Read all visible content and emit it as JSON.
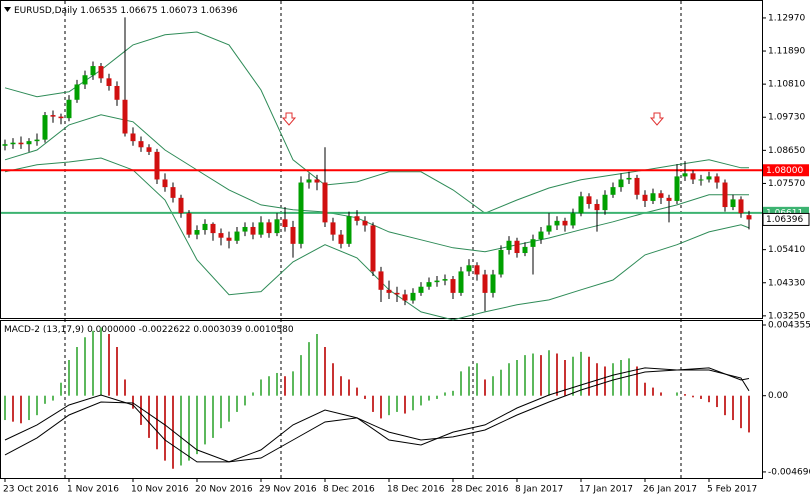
{
  "chart_data": {
    "type": "candlestick",
    "symbol": "EURUSD,Daily",
    "ohlc": [
      [
        1.088,
        1.09,
        1.0865,
        1.0885
      ],
      [
        1.0885,
        1.0905,
        1.087,
        1.089
      ],
      [
        1.089,
        1.091,
        1.087,
        1.0885
      ],
      [
        1.0885,
        1.0905,
        1.086,
        1.0895
      ],
      [
        1.0895,
        1.092,
        1.088,
        1.09
      ],
      [
        1.09,
        1.099,
        1.089,
        1.098
      ],
      [
        1.098,
        1.0995,
        1.0955,
        1.0975
      ],
      [
        1.0975,
        1.0985,
        1.095,
        1.097
      ],
      [
        1.097,
        1.1045,
        1.096,
        1.103
      ],
      [
        1.103,
        1.1095,
        1.102,
        1.108
      ],
      [
        1.108,
        1.1125,
        1.1065,
        1.111
      ],
      [
        1.111,
        1.1155,
        1.1095,
        1.114
      ],
      [
        1.114,
        1.115,
        1.1085,
        1.11
      ],
      [
        1.11,
        1.1115,
        1.106,
        1.1075
      ],
      [
        1.1075,
        1.109,
        1.101,
        1.103
      ],
      [
        1.103,
        1.1299,
        1.091,
        1.092
      ],
      [
        1.092,
        1.094,
        1.088,
        1.0895
      ],
      [
        1.0895,
        1.091,
        1.086,
        1.0875
      ],
      [
        1.0875,
        1.0885,
        1.085,
        1.086
      ],
      [
        1.086,
        1.087,
        1.0755,
        1.077
      ],
      [
        1.077,
        1.079,
        1.073,
        1.0745
      ],
      [
        1.0745,
        1.076,
        1.0695,
        1.071
      ],
      [
        1.071,
        1.072,
        1.0645,
        1.066
      ],
      [
        1.066,
        1.067,
        1.058,
        1.059
      ],
      [
        1.059,
        1.062,
        1.0575,
        1.0605
      ],
      [
        1.0605,
        1.064,
        1.059,
        1.0625
      ],
      [
        1.0625,
        1.063,
        1.057,
        1.0595
      ],
      [
        1.0595,
        1.061,
        1.0555,
        1.058
      ],
      [
        1.058,
        1.06,
        1.0545,
        1.057
      ],
      [
        1.057,
        1.0615,
        1.056,
        1.06
      ],
      [
        1.06,
        1.063,
        1.0585,
        1.0615
      ],
      [
        1.0615,
        1.063,
        1.0575,
        1.059
      ],
      [
        1.059,
        1.065,
        1.058,
        1.063
      ],
      [
        1.063,
        1.064,
        1.058,
        1.0595
      ],
      [
        1.0595,
        1.066,
        1.0585,
        1.064
      ],
      [
        1.064,
        1.068,
        1.06,
        1.0615
      ],
      [
        1.0615,
        1.0635,
        1.0515,
        1.056
      ],
      [
        1.056,
        1.078,
        1.0545,
        1.076
      ],
      [
        1.076,
        1.079,
        1.074,
        1.077
      ],
      [
        1.077,
        1.0785,
        1.0735,
        1.076
      ],
      [
        1.076,
        1.0875,
        1.0615,
        1.063
      ],
      [
        1.063,
        1.0645,
        1.057,
        1.059
      ],
      [
        1.059,
        1.0605,
        1.0545,
        1.056
      ],
      [
        1.056,
        1.0665,
        1.055,
        1.065
      ],
      [
        1.065,
        1.067,
        1.062,
        1.0635
      ],
      [
        1.0635,
        1.065,
        1.06,
        1.062
      ],
      [
        1.062,
        1.063,
        1.0455,
        1.047
      ],
      [
        1.047,
        1.0485,
        1.037,
        1.041
      ],
      [
        1.041,
        1.044,
        1.038,
        1.04
      ],
      [
        1.04,
        1.042,
        1.037,
        1.0395
      ],
      [
        1.0395,
        1.041,
        1.036,
        1.0375
      ],
      [
        1.0375,
        1.0415,
        1.0365,
        1.04
      ],
      [
        1.04,
        1.0435,
        1.039,
        1.042
      ],
      [
        1.042,
        1.045,
        1.041,
        1.0435
      ],
      [
        1.0435,
        1.0455,
        1.042,
        1.044
      ],
      [
        1.044,
        1.046,
        1.0425,
        1.0445
      ],
      [
        1.0445,
        1.0455,
        1.038,
        1.04
      ],
      [
        1.04,
        1.0485,
        1.039,
        1.047
      ],
      [
        1.047,
        1.051,
        1.0455,
        1.049
      ],
      [
        1.049,
        1.05,
        1.044,
        1.046
      ],
      [
        1.046,
        1.0475,
        1.034,
        1.04
      ],
      [
        1.04,
        1.0475,
        1.0385,
        1.046
      ],
      [
        1.046,
        1.0555,
        1.045,
        1.054
      ],
      [
        1.054,
        1.0585,
        1.0525,
        1.057
      ],
      [
        1.057,
        1.058,
        1.0515,
        1.053
      ],
      [
        1.053,
        1.0565,
        1.052,
        1.055
      ],
      [
        1.055,
        1.059,
        1.046,
        1.0575
      ],
      [
        1.0575,
        1.0615,
        1.056,
        1.06
      ],
      [
        1.06,
        1.066,
        1.059,
        1.062
      ],
      [
        1.062,
        1.065,
        1.0605,
        1.0635
      ],
      [
        1.0635,
        1.0645,
        1.06,
        1.062
      ],
      [
        1.062,
        1.0675,
        1.061,
        1.066
      ],
      [
        1.066,
        1.073,
        1.065,
        1.0715
      ],
      [
        1.0715,
        1.0725,
        1.0675,
        1.069
      ],
      [
        1.069,
        1.0705,
        1.06,
        1.067
      ],
      [
        1.067,
        1.0735,
        1.0655,
        1.072
      ],
      [
        1.072,
        1.076,
        1.071,
        1.0745
      ],
      [
        1.0745,
        1.079,
        1.073,
        1.077
      ],
      [
        1.077,
        1.0795,
        1.0755,
        1.0775
      ],
      [
        1.0775,
        1.0785,
        1.0705,
        1.072
      ],
      [
        1.072,
        1.0735,
        1.068,
        1.07
      ],
      [
        1.07,
        1.074,
        1.069,
        1.0725
      ],
      [
        1.0725,
        1.0735,
        1.069,
        1.071
      ],
      [
        1.071,
        1.072,
        1.063,
        1.07
      ],
      [
        1.07,
        1.082,
        1.069,
        1.078
      ],
      [
        1.078,
        1.083,
        1.0765,
        1.079
      ],
      [
        1.079,
        1.08,
        1.0755,
        1.077
      ],
      [
        1.077,
        1.0785,
        1.075,
        1.077
      ],
      [
        1.077,
        1.0795,
        1.076,
        1.078
      ],
      [
        1.078,
        1.079,
        1.074,
        1.076
      ],
      [
        1.076,
        1.077,
        1.0665,
        1.068
      ],
      [
        1.068,
        1.072,
        1.067,
        1.0705
      ],
      [
        1.0705,
        1.0715,
        1.0645,
        1.066
      ],
      [
        1.06535,
        1.06675,
        1.06073,
        1.06396
      ]
    ],
    "categories": [
      "23 Oct 2016",
      null,
      null,
      null,
      null,
      null,
      null,
      null,
      "1 Nov 2016",
      null,
      null,
      null,
      null,
      null,
      null,
      null,
      "10 Nov 2016",
      null,
      null,
      null,
      null,
      null,
      null,
      null,
      "20 Nov 2016",
      null,
      null,
      null,
      null,
      null,
      null,
      null,
      "29 Nov 2016",
      null,
      null,
      null,
      null,
      null,
      null,
      null,
      "8 Dec 2016",
      null,
      null,
      null,
      null,
      null,
      null,
      null,
      "18 Dec 2016",
      null,
      null,
      null,
      null,
      null,
      null,
      null,
      "28 Dec 2016",
      null,
      null,
      null,
      null,
      null,
      null,
      null,
      "8 Jan 2017",
      null,
      null,
      null,
      null,
      null,
      null,
      null,
      "17 Jan 2017",
      null,
      null,
      null,
      null,
      null,
      null,
      null,
      "26 Jan 2017",
      null,
      null,
      null,
      null,
      null,
      null,
      null,
      "5 Feb 2017",
      null,
      null,
      null,
      null,
      null
    ],
    "period_separators": [
      8,
      35,
      59,
      85
    ],
    "up_color": "#00a000",
    "down_color": "#d01010",
    "wick_color": "#000000",
    "ylim": [
      1.0318,
      1.1349
    ],
    "yticks": [
      {
        "value": 1.1297,
        "label": "1.12970"
      },
      {
        "value": 1.1189,
        "label": "1.11890"
      },
      {
        "value": 1.1081,
        "label": "1.10810"
      },
      {
        "value": 1.0973,
        "label": "1.09730"
      },
      {
        "value": 1.0865,
        "label": "1.08650"
      },
      {
        "value": 1.0757,
        "label": "1.07570"
      },
      {
        "value": 1.0541,
        "label": "1.05410"
      },
      {
        "value": 1.0433,
        "label": "1.04330"
      },
      {
        "value": 1.0325,
        "label": "1.03250"
      }
    ],
    "hlines": [
      {
        "value": 1.08,
        "label": "1.08000",
        "color": "#ff0000"
      },
      {
        "value": 1.06611,
        "label": "1.06611",
        "color": "#3cb371"
      }
    ],
    "line_x": [
      0,
      4,
      8,
      12,
      16,
      20,
      24,
      28,
      32,
      36,
      40,
      44,
      48,
      52,
      56,
      60,
      64,
      68,
      72,
      76,
      80,
      84,
      88,
      92,
      93
    ],
    "bands": {
      "color": "#2e8b57",
      "series": [
        {
          "values": [
            1.1069,
            1.104,
            1.1056,
            1.1127,
            1.1209,
            1.1242,
            1.1251,
            1.1209,
            1.1062,
            1.0834,
            1.0752,
            1.0762,
            1.0795,
            1.0795,
            1.0736,
            1.066,
            1.0703,
            1.0742,
            1.0769,
            1.0785,
            1.0801,
            1.0818,
            1.0834,
            1.0808,
            1.0808
          ]
        },
        {
          "values": [
            1.0834,
            1.0866,
            1.0948,
            1.0981,
            1.0958,
            1.0866,
            1.0801,
            1.0736,
            1.0687,
            1.0671,
            1.0664,
            1.0645,
            1.0599,
            1.0573,
            1.0547,
            1.0534,
            1.0557,
            1.0579,
            1.0606,
            1.0632,
            1.0661,
            1.0687,
            1.072,
            1.072,
            1.072
          ]
        },
        {
          "values": [
            1.0795,
            1.0818,
            1.0827,
            1.084,
            1.0801,
            1.0703,
            1.0508,
            1.0394,
            1.0404,
            1.0501,
            1.0557,
            1.0514,
            1.041,
            1.0338,
            1.0312,
            1.0338,
            1.0361,
            1.0377,
            1.041,
            1.0442,
            1.0524,
            1.0557,
            1.0599,
            1.0622,
            1.0612
          ]
        }
      ]
    },
    "macd": {
      "label": "MACD-2 (13,17,9)",
      "header_values": [
        {
          "value": 0,
          "label": "0.0000000"
        },
        -0.0022622,
        0.0003039,
        {
          "value": 0.001058,
          "label": "0.0010580"
        }
      ],
      "ylim": [
        -0.00507,
        0.00454
      ],
      "yticks": [
        {
          "value": 0.004355,
          "label": "0.004355"
        },
        {
          "value": 0,
          "label": "0.00"
        },
        {
          "value": -0.004696,
          "label": "-0.004696"
        }
      ],
      "hist_up_color": "#5cb85c",
      "hist_down_color": "#c83232",
      "line_color": "#000000",
      "histogram": [
        -0.0015,
        -0.0016,
        -0.0017,
        -0.0015,
        -0.0012,
        -0.0005,
        -0.0003,
        0.0008,
        0.0022,
        0.003,
        0.0036,
        0.004,
        0.0042,
        0.0038,
        0.003,
        0.001,
        -0.0008,
        -0.0018,
        -0.0026,
        -0.0033,
        -0.004,
        -0.0045,
        -0.0043,
        -0.004,
        -0.0036,
        -0.003,
        -0.0026,
        -0.002,
        -0.0016,
        -0.001,
        -0.0006,
        0.0002,
        0.001,
        0.0012,
        0.0014,
        0.0012,
        0.0015,
        0.0025,
        0.0033,
        0.0038,
        0.003,
        0.002,
        0.0012,
        0.001,
        0.0005,
        -0.0002,
        -0.001,
        -0.0014,
        -0.0012,
        -0.001,
        -0.0011,
        -0.0009,
        -0.0006,
        -0.0003,
        -0.0002,
        0.0002,
        0.0003,
        0.0015,
        0.0018,
        0.002,
        0.001,
        0.0012,
        0.0016,
        0.002,
        0.0022,
        0.0025,
        0.0026,
        0.0025,
        0.0028,
        0.0026,
        0.0022,
        0.0024,
        0.0027,
        0.0024,
        0.002,
        0.0018,
        0.002,
        0.0022,
        0.0023,
        0.0018,
        0.0008,
        0.0005,
        0.0002,
        0,
        0.0002,
        0.0001,
        -0.0001,
        -0.0002,
        -0.0004,
        -0.0007,
        -0.0012,
        -0.0015,
        -0.002,
        -0.0022622
      ],
      "lines": [
        {
          "values": [
            -0.00273,
            -0.0018,
            -0.00057,
            4e-05,
            -0.00057,
            -0.00273,
            -0.00408,
            -0.00408,
            -0.00334,
            -0.0018,
            -0.00088,
            -0.00137,
            -0.00273,
            -0.00304,
            -0.00224,
            -0.0018,
            -0.00076,
            4e-05,
            0.00066,
            0.00127,
            0.00171,
            0.00158,
            0.00171,
            0.00097,
            0.001058
          ]
        },
        {
          "values": [
            -0.00365,
            -0.0026,
            -0.00119,
            -0.00039,
            -0.00045,
            -0.0018,
            -0.00334,
            -0.00408,
            -0.00384,
            -0.00273,
            -0.00162,
            -0.00137,
            -0.00224,
            -0.00273,
            -0.00254,
            -0.00211,
            -0.00119,
            -0.00039,
            0.00035,
            0.00097,
            0.00146,
            0.00158,
            0.00158,
            0.00109,
            0.0003039
          ]
        }
      ]
    }
  }
}
